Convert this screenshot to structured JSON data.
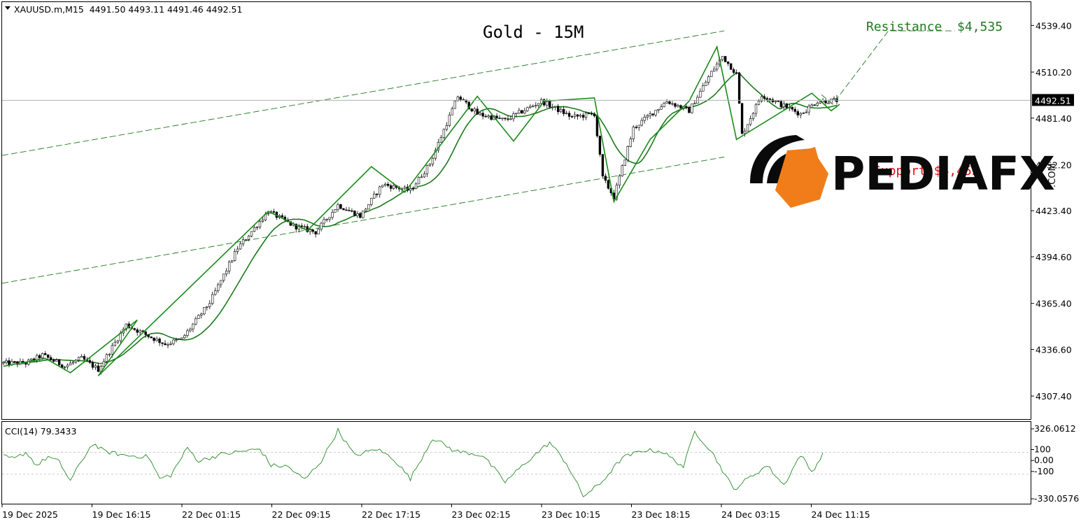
{
  "header": {
    "symbol_info": "XAUUSD.m,M15  4491.50 4493.11 4491.46 4492.51"
  },
  "annotations": {
    "title": "Gold - 15M",
    "resistance": "Resistance  $4,535",
    "support": "Support $4,452"
  },
  "logo": {
    "text": "PEDIAFX",
    "suffix": ".COM",
    "colors": {
      "orange": "#f07d1a",
      "dark": "#0a0a0a"
    }
  },
  "colors": {
    "ma_line": "#1a7a1a",
    "zigzag": "#1a8a1a",
    "channel": "#1f7a1f",
    "cci": "#2a8a2a",
    "candle": "#000000",
    "price_box_bg": "#000000",
    "price_box_text": "#ffffff"
  },
  "chart_data": [
    {
      "type": "candlestick",
      "title": "Gold - 15M",
      "symbol": "XAUUSD.m",
      "timeframe": "M15",
      "last_price": "4492.51",
      "price_label": "4492.51",
      "ylim": [
        4293.0,
        4554.0
      ],
      "y_ticks": [
        "4539.40",
        "4510.20",
        "4481.40",
        "4452.20",
        "4423.40",
        "4394.60",
        "4365.40",
        "4336.60",
        "4307.40"
      ],
      "y_tick_values": [
        4539.4,
        4510.2,
        4481.4,
        4452.2,
        4423.4,
        4394.6,
        4365.4,
        4336.6,
        4307.4
      ],
      "x_ticks": [
        "19 Dec 2025",
        "19 Dec 16:15",
        "22 Dec 01:15",
        "22 Dec 09:15",
        "22 Dec 17:15",
        "23 Dec 02:15",
        "23 Dec 10:15",
        "23 Dec 18:15",
        "24 Dec 03:15",
        "24 Dec 11:15"
      ],
      "x_tick_index": [
        0,
        32,
        64,
        96,
        128,
        160,
        192,
        224,
        256,
        288
      ],
      "bars": 300,
      "price_path": [
        [
          0,
          4328
        ],
        [
          8,
          4328
        ],
        [
          14,
          4333
        ],
        [
          22,
          4326
        ],
        [
          28,
          4331
        ],
        [
          34,
          4324
        ],
        [
          44,
          4352
        ],
        [
          52,
          4345
        ],
        [
          58,
          4340
        ],
        [
          64,
          4343
        ],
        [
          74,
          4366
        ],
        [
          84,
          4400
        ],
        [
          95,
          4423
        ],
        [
          104,
          4414
        ],
        [
          112,
          4410
        ],
        [
          120,
          4427
        ],
        [
          128,
          4420
        ],
        [
          136,
          4440
        ],
        [
          146,
          4436
        ],
        [
          153,
          4453
        ],
        [
          163,
          4495
        ],
        [
          170,
          4484
        ],
        [
          180,
          4480
        ],
        [
          193,
          4492
        ],
        [
          204,
          4482
        ],
        [
          212,
          4484
        ],
        [
          215,
          4444
        ],
        [
          219,
          4432
        ],
        [
          226,
          4475
        ],
        [
          238,
          4492
        ],
        [
          246,
          4486
        ],
        [
          254,
          4510
        ],
        [
          258,
          4520
        ],
        [
          263,
          4509
        ],
        [
          265,
          4471
        ],
        [
          272,
          4496
        ],
        [
          280,
          4489
        ],
        [
          286,
          4484
        ],
        [
          292,
          4492
        ],
        [
          300,
          4492.5
        ]
      ],
      "zigzag": [
        [
          0,
          4326
        ],
        [
          15,
          4331
        ],
        [
          24,
          4322
        ],
        [
          48,
          4355
        ],
        [
          34,
          4320
        ],
        [
          95,
          4423
        ],
        [
          109,
          4411
        ],
        [
          132,
          4451
        ],
        [
          144,
          4435
        ],
        [
          170,
          4495
        ],
        [
          183,
          4467
        ],
        [
          194,
          4492
        ],
        [
          212,
          4494
        ],
        [
          219,
          4429
        ],
        [
          232,
          4468
        ],
        [
          246,
          4492
        ],
        [
          256,
          4526
        ],
        [
          263,
          4468
        ],
        [
          290,
          4497
        ],
        [
          297,
          4486
        ],
        [
          300,
          4490
        ]
      ],
      "channel_upper": [
        [
          0,
          4458
        ],
        [
          290,
          4536
        ]
      ],
      "channel_lower": [
        [
          0,
          4378
        ],
        [
          290,
          4457
        ]
      ],
      "projection": [
        [
          296,
          4496
        ],
        [
          300,
          4490
        ],
        [
          320,
          4536
        ]
      ],
      "horizontal_line": 4492.51
    },
    {
      "type": "line",
      "title": "",
      "series_name": "CCI(14) 79.3433",
      "ylim": [
        -330.0576,
        326.0612
      ],
      "y_ticks": [
        "326.0612",
        "100",
        "0.00",
        "-100",
        "-330.0576"
      ],
      "y_tick_values": [
        326.0612,
        100,
        0,
        -100,
        -330.0576
      ],
      "levels": [
        100,
        -100
      ],
      "cci_path": [
        [
          0,
          60
        ],
        [
          4,
          40
        ],
        [
          8,
          100
        ],
        [
          12,
          -20
        ],
        [
          16,
          60
        ],
        [
          20,
          10
        ],
        [
          24,
          -160
        ],
        [
          28,
          20
        ],
        [
          32,
          180
        ],
        [
          36,
          110
        ],
        [
          44,
          70
        ],
        [
          52,
          60
        ],
        [
          56,
          -140
        ],
        [
          60,
          -110
        ],
        [
          66,
          140
        ],
        [
          70,
          20
        ],
        [
          78,
          80
        ],
        [
          86,
          110
        ],
        [
          92,
          130
        ],
        [
          96,
          -20
        ],
        [
          102,
          -30
        ],
        [
          108,
          -150
        ],
        [
          114,
          20
        ],
        [
          120,
          300
        ],
        [
          126,
          70
        ],
        [
          134,
          130
        ],
        [
          140,
          40
        ],
        [
          146,
          -140
        ],
        [
          154,
          230
        ],
        [
          162,
          110
        ],
        [
          168,
          90
        ],
        [
          172,
          70
        ],
        [
          180,
          -170
        ],
        [
          188,
          20
        ],
        [
          196,
          190
        ],
        [
          202,
          0
        ],
        [
          208,
          -300
        ],
        [
          214,
          -190
        ],
        [
          222,
          50
        ],
        [
          230,
          120
        ],
        [
          236,
          110
        ],
        [
          244,
          -30
        ],
        [
          248,
          290
        ],
        [
          254,
          110
        ],
        [
          262,
          -240
        ],
        [
          266,
          -160
        ],
        [
          274,
          -20
        ],
        [
          280,
          -200
        ],
        [
          286,
          80
        ],
        [
          290,
          -80
        ],
        [
          294,
          80
        ]
      ]
    }
  ]
}
